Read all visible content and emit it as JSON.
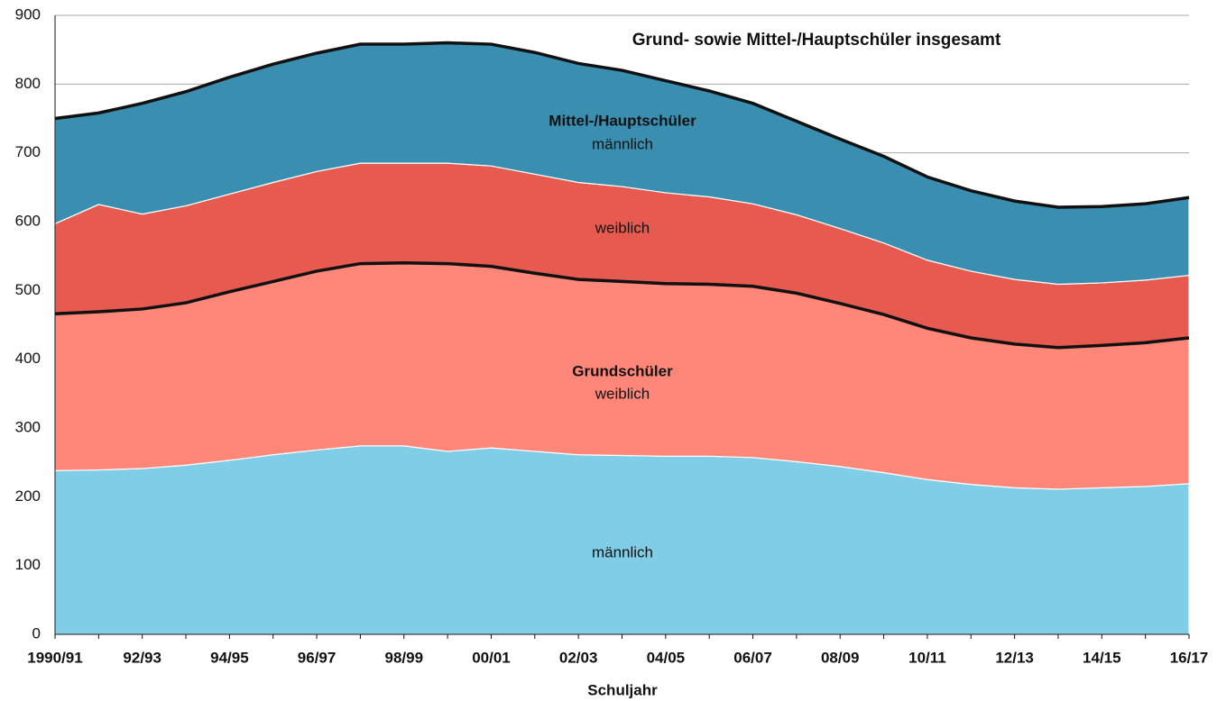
{
  "chart_data": {
    "type": "stacked_area",
    "title": "Grund- sowie Mittel-/Hauptschüler insgesamt",
    "x_label": "Schuljahr",
    "groups": [
      "Grundschüler",
      "Mittel-/Hauptschüler"
    ],
    "categories": [
      "1990/91",
      null,
      "92/93",
      null,
      "94/95",
      null,
      "96/97",
      null,
      "98/99",
      null,
      "00/01",
      null,
      "02/03",
      null,
      "04/05",
      null,
      "06/07",
      null,
      "08/09",
      null,
      "10/11",
      null,
      "12/13",
      null,
      "14/15",
      null,
      "16/17"
    ],
    "series": [
      {
        "name": "männlich",
        "color": "#7fcde6",
        "outline": false,
        "values": [
          238,
          239,
          241,
          246,
          253,
          261,
          268,
          274,
          274,
          266,
          271,
          266,
          261,
          260,
          259,
          259,
          257,
          251,
          244,
          235,
          225,
          218,
          213,
          211,
          213,
          215,
          219
        ]
      },
      {
        "name": "weiblich",
        "color": "#ff877a",
        "outline": true,
        "values": [
          228,
          230,
          232,
          236,
          245,
          252,
          260,
          265,
          266,
          273,
          264,
          259,
          255,
          253,
          251,
          250,
          249,
          245,
          237,
          230,
          220,
          213,
          209,
          206,
          207,
          209,
          212
        ]
      },
      {
        "name": "weiblich",
        "color": "#e75a50",
        "outline": false,
        "values": [
          131,
          156,
          138,
          141,
          142,
          144,
          145,
          146,
          145,
          146,
          146,
          144,
          141,
          138,
          132,
          127,
          120,
          114,
          109,
          104,
          99,
          97,
          94,
          92,
          91,
          91,
          91
        ]
      },
      {
        "name": "männlich",
        "color": "#3a8fb1",
        "outline": true,
        "values": [
          153,
          133,
          161,
          166,
          170,
          172,
          172,
          173,
          173,
          175,
          177,
          177,
          173,
          169,
          163,
          154,
          146,
          136,
          130,
          126,
          121,
          117,
          114,
          112,
          111,
          111,
          113
        ]
      }
    ],
    "ylim": [
      0,
      900
    ],
    "yticks": [
      0,
      100,
      200,
      300,
      400,
      500,
      600,
      700,
      800,
      900
    ],
    "grid": true
  }
}
